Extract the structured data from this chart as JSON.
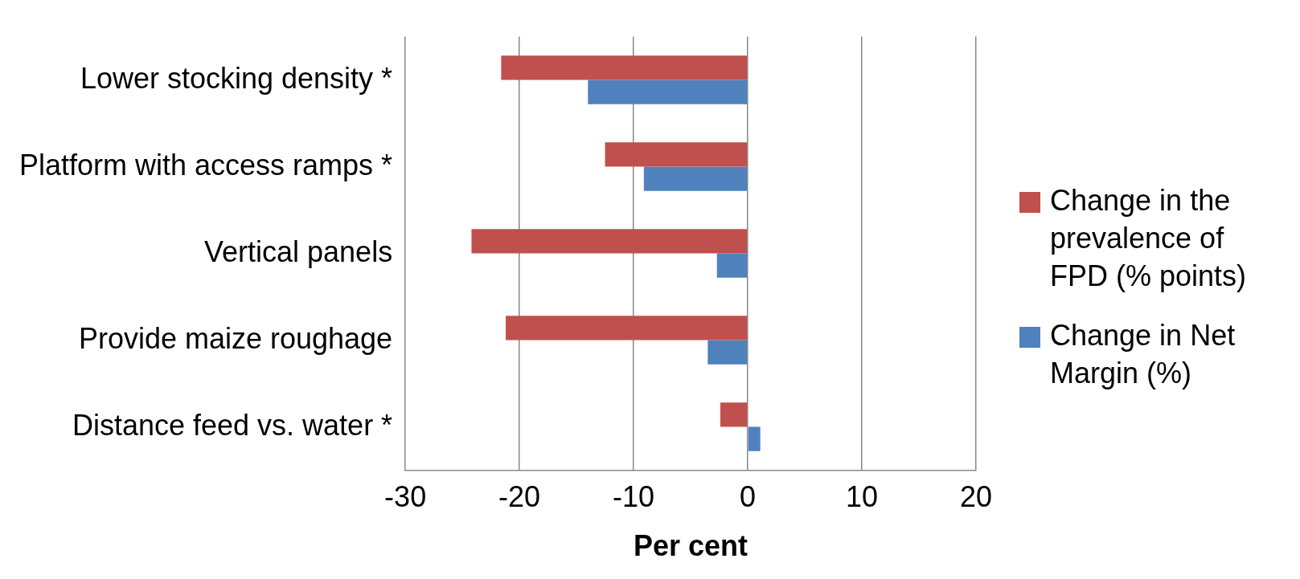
{
  "chart_data": {
    "type": "bar",
    "orientation": "horizontal",
    "xlabel": "Per cent",
    "categories": [
      "Lower stocking density *",
      "Platform with access ramps *",
      "Vertical panels",
      "Provide maize roughage",
      "Distance feed vs. water *"
    ],
    "series": [
      {
        "name": "Change in the prevalence of FPD (% points)",
        "color": "#c0504d",
        "values": [
          -21.6,
          -12.5,
          -24.2,
          -21.2,
          -2.4
        ]
      },
      {
        "name": "Change in Net Margin (%)",
        "color": "#4f81bd",
        "values": [
          -14.0,
          -9.1,
          -2.7,
          -3.5,
          1.1
        ]
      }
    ],
    "xlim": [
      -30,
      20
    ],
    "xticks": [
      -30,
      -20,
      -10,
      0,
      10,
      20
    ],
    "grid": "x",
    "legend": "right"
  }
}
